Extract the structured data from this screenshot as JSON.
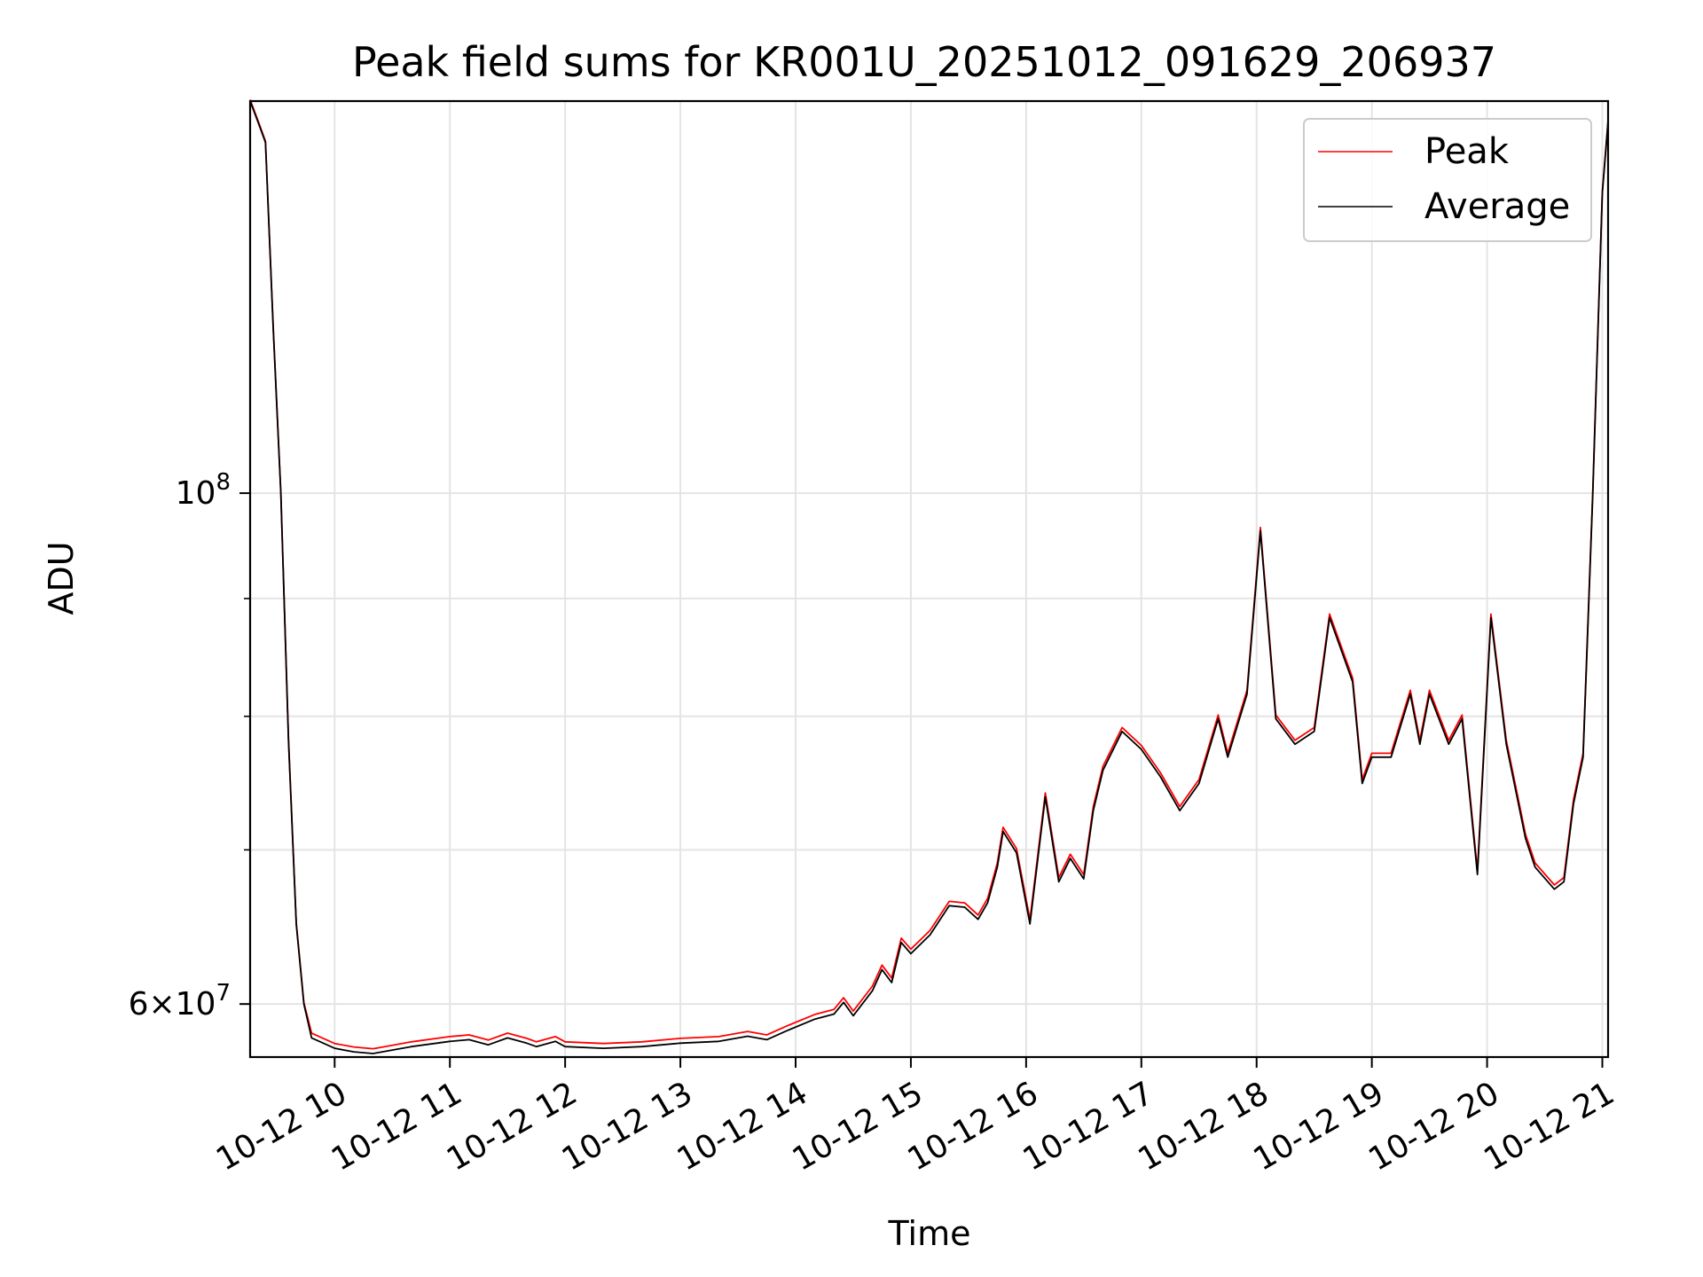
{
  "chart_data": {
    "type": "line",
    "title": "Peak field sums for KR001U_20251012_091629_206937",
    "xlabel": "Time",
    "ylabel": "ADU",
    "yscale": "log",
    "xlim": [
      "2025-10-12 09:16",
      "2025-10-12 21:03"
    ],
    "ylim": [
      56900000,
      148000000
    ],
    "grid": true,
    "legend_position": "upper right",
    "x_ticks": [
      {
        "value": "2025-10-12 10:00",
        "label": "10-12 10"
      },
      {
        "value": "2025-10-12 11:00",
        "label": "10-12 11"
      },
      {
        "value": "2025-10-12 12:00",
        "label": "10-12 12"
      },
      {
        "value": "2025-10-12 13:00",
        "label": "10-12 13"
      },
      {
        "value": "2025-10-12 14:00",
        "label": "10-12 14"
      },
      {
        "value": "2025-10-12 15:00",
        "label": "10-12 15"
      },
      {
        "value": "2025-10-12 16:00",
        "label": "10-12 16"
      },
      {
        "value": "2025-10-12 17:00",
        "label": "10-12 17"
      },
      {
        "value": "2025-10-12 18:00",
        "label": "10-12 18"
      },
      {
        "value": "2025-10-12 19:00",
        "label": "10-12 19"
      },
      {
        "value": "2025-10-12 20:00",
        "label": "10-12 20"
      },
      {
        "value": "2025-10-12 21:00",
        "label": "10-12 21"
      }
    ],
    "y_ticks_major": [
      {
        "value": 60000000,
        "base": "6",
        "times": "×",
        "power_base": "10",
        "exponent": "7"
      },
      {
        "value": 100000000,
        "base": "",
        "times": "",
        "power_base": "10",
        "exponent": "8"
      }
    ],
    "y_ticks_minor": [
      70000000,
      80000000,
      90000000
    ],
    "x": [
      "2025-10-12 09:16",
      "2025-10-12 09:20",
      "2025-10-12 09:24",
      "2025-10-12 09:28",
      "2025-10-12 09:32",
      "2025-10-12 09:36",
      "2025-10-12 09:40",
      "2025-10-12 09:44",
      "2025-10-12 09:48",
      "2025-10-12 09:52",
      "2025-10-12 10:00",
      "2025-10-12 10:10",
      "2025-10-12 10:20",
      "2025-10-12 10:30",
      "2025-10-12 10:40",
      "2025-10-12 11:00",
      "2025-10-12 11:10",
      "2025-10-12 11:20",
      "2025-10-12 11:30",
      "2025-10-12 11:40",
      "2025-10-12 11:45",
      "2025-10-12 11:55",
      "2025-10-12 12:00",
      "2025-10-12 12:20",
      "2025-10-12 12:40",
      "2025-10-12 13:00",
      "2025-10-12 13:20",
      "2025-10-12 13:35",
      "2025-10-12 13:45",
      "2025-10-12 13:55",
      "2025-10-12 14:10",
      "2025-10-12 14:20",
      "2025-10-12 14:25",
      "2025-10-12 14:30",
      "2025-10-12 14:40",
      "2025-10-12 14:45",
      "2025-10-12 14:50",
      "2025-10-12 14:55",
      "2025-10-12 15:00",
      "2025-10-12 15:10",
      "2025-10-12 15:20",
      "2025-10-12 15:28",
      "2025-10-12 15:35",
      "2025-10-12 15:40",
      "2025-10-12 15:45",
      "2025-10-12 15:48",
      "2025-10-12 15:55",
      "2025-10-12 16:02",
      "2025-10-12 16:10",
      "2025-10-12 16:17",
      "2025-10-12 16:23",
      "2025-10-12 16:30",
      "2025-10-12 16:35",
      "2025-10-12 16:40",
      "2025-10-12 16:50",
      "2025-10-12 17:00",
      "2025-10-12 17:10",
      "2025-10-12 17:20",
      "2025-10-12 17:30",
      "2025-10-12 17:40",
      "2025-10-12 17:45",
      "2025-10-12 17:55",
      "2025-10-12 18:02",
      "2025-10-12 18:10",
      "2025-10-12 18:20",
      "2025-10-12 18:30",
      "2025-10-12 18:38",
      "2025-10-12 18:50",
      "2025-10-12 18:55",
      "2025-10-12 19:00",
      "2025-10-12 19:10",
      "2025-10-12 19:20",
      "2025-10-12 19:25",
      "2025-10-12 19:30",
      "2025-10-12 19:40",
      "2025-10-12 19:47",
      "2025-10-12 19:55",
      "2025-10-12 20:02",
      "2025-10-12 20:10",
      "2025-10-12 20:20",
      "2025-10-12 20:25",
      "2025-10-12 20:35",
      "2025-10-12 20:40",
      "2025-10-12 20:45",
      "2025-10-12 20:50",
      "2025-10-12 20:55",
      "2025-10-12 21:00",
      "2025-10-12 21:03"
    ],
    "series": [
      {
        "name": "Peak",
        "color": "#ff0000",
        "values": [
          148000000,
          145000000,
          142000000,
          118000000,
          100000000,
          78000000,
          65000000,
          60000000,
          58200000,
          58000000,
          57600000,
          57400000,
          57300000,
          57500000,
          57700000,
          58000000,
          58100000,
          57800000,
          58200000,
          57900000,
          57700000,
          58000000,
          57700000,
          57600000,
          57700000,
          57900000,
          58000000,
          58300000,
          58100000,
          58600000,
          59300000,
          59600000,
          60300000,
          59500000,
          61000000,
          62300000,
          61500000,
          64000000,
          63300000,
          64500000,
          66400000,
          66300000,
          65500000,
          66600000,
          69000000,
          71500000,
          70000000,
          65200000,
          74000000,
          68000000,
          69600000,
          68200000,
          73000000,
          76000000,
          79000000,
          77600000,
          75500000,
          73000000,
          75000000,
          80000000,
          77000000,
          82000000,
          96500000,
          80000000,
          78000000,
          79000000,
          88500000,
          83000000,
          75000000,
          77000000,
          77000000,
          82000000,
          78000000,
          82000000,
          78000000,
          80000000,
          68500000,
          88500000,
          78000000,
          71000000,
          69000000,
          67500000,
          68000000,
          73500000,
          77000000,
          100000000,
          135000000,
          145000000
        ]
      },
      {
        "name": "Average",
        "color": "#000000",
        "values": [
          148000000,
          145000000,
          142000000,
          118000000,
          100000000,
          78000000,
          65000000,
          60000000,
          58000000,
          57800000,
          57400000,
          57200000,
          57100000,
          57300000,
          57500000,
          57800000,
          57900000,
          57600000,
          58000000,
          57700000,
          57500000,
          57800000,
          57500000,
          57400000,
          57500000,
          57700000,
          57800000,
          58100000,
          57900000,
          58400000,
          59100000,
          59400000,
          60100000,
          59300000,
          60800000,
          62100000,
          61300000,
          63800000,
          63100000,
          64300000,
          66200000,
          66100000,
          65300000,
          66400000,
          68800000,
          71300000,
          69800000,
          65000000,
          73800000,
          67800000,
          69400000,
          68000000,
          72800000,
          75800000,
          78800000,
          77400000,
          75300000,
          72800000,
          74800000,
          79800000,
          76800000,
          81800000,
          96300000,
          79800000,
          77800000,
          78800000,
          88300000,
          82800000,
          74800000,
          76800000,
          76800000,
          81800000,
          77800000,
          81800000,
          77800000,
          79800000,
          68300000,
          88300000,
          77800000,
          70800000,
          68800000,
          67300000,
          67800000,
          73300000,
          76800000,
          99800000,
          135000000,
          145000000
        ]
      }
    ]
  }
}
